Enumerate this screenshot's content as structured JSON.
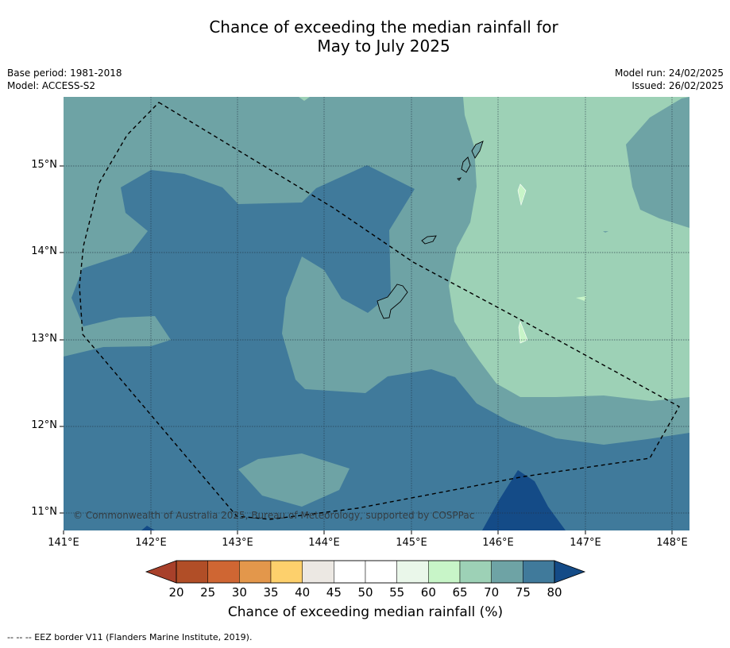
{
  "title_line1": "Chance of exceeding the median rainfall for",
  "title_line2": "May to July 2025",
  "meta_left": [
    "Base period: 1981-2018",
    "Model: ACCESS-S2"
  ],
  "meta_right": [
    "Model run: 24/02/2025",
    "Issued: 26/02/2025"
  ],
  "y_axis_labels": [
    "15°N",
    "14°N",
    "13°N",
    "12°N",
    "11°N"
  ],
  "x_axis_labels": [
    "141°E",
    "142°E",
    "143°E",
    "144°E",
    "145°E",
    "146°E",
    "147°E",
    "148°E"
  ],
  "copyright": "© Commonwealth of Australia 2025, Bureau of Meteorology, supported by COSPPac",
  "colorbar": {
    "ticks": [
      "20",
      "25",
      "30",
      "35",
      "40",
      "45",
      "50",
      "55",
      "60",
      "65",
      "70",
      "75",
      "80"
    ],
    "title": "Chance of exceeding median rainfall (%)",
    "colors": [
      "#b14e27",
      "#cf6633",
      "#e3974b",
      "#fdd06c",
      "#ece8e3",
      "#ffffff",
      "#ffffff",
      "#eaf7ea",
      "#c8f5c8",
      "#9dd1b6",
      "#6ea3a5",
      "#407a9b"
    ],
    "under_color": "#a8402a",
    "over_color": "#144b87"
  },
  "footnote": "--  --  -- EEZ border V11 (Flanders Marine Institute, 2019)."
}
